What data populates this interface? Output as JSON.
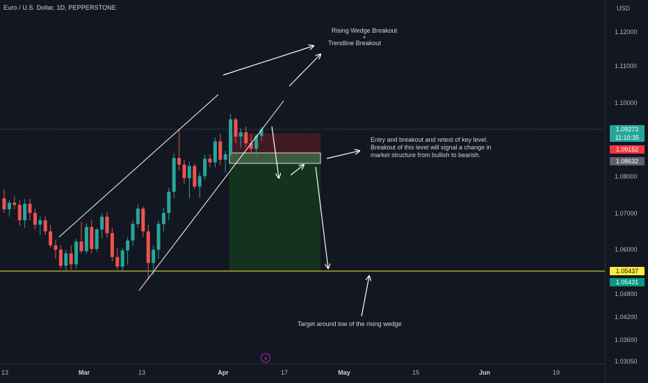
{
  "header": {
    "symbol_title": "Euro / U.S. Dollar, 1D, PEPPERSTONE"
  },
  "price_axis": {
    "currency": "USD",
    "ticks": [
      "1.12000",
      "1.11000",
      "1.10000",
      "1.08000",
      "1.07000",
      "1.06000",
      "1.04800",
      "1.04200",
      "1.03600",
      "1.03050"
    ],
    "labels": {
      "current_price": "1.09273",
      "countdown": "11:10:35",
      "red_level": "1.09152",
      "grey_level": "1.08632",
      "yellow_level": "1.05437",
      "green_level": "1.05431"
    },
    "colors": {
      "current_price": "#26a69a",
      "red_level": "#f23645",
      "grey_level": "#5d606b",
      "yellow_level": "#ffeb3b",
      "green_level": "#089981"
    }
  },
  "time_axis": {
    "ticks": [
      {
        "label": "13",
        "bold": false
      },
      {
        "label": "Mar",
        "bold": true
      },
      {
        "label": "13",
        "bold": false
      },
      {
        "label": "Apr",
        "bold": true
      },
      {
        "label": "17",
        "bold": false
      },
      {
        "label": "May",
        "bold": true
      },
      {
        "label": "15",
        "bold": false
      },
      {
        "label": "Jun",
        "bold": true
      },
      {
        "label": "19",
        "bold": false
      }
    ]
  },
  "annotations": {
    "wedge_line1": "Rising Wedge Breakout",
    "wedge_plus": "+",
    "wedge_line2": "Trendline Breakout",
    "entry_line1": "Entry and breakout and retest of key level.",
    "entry_line2": "Breakout of this level will signal a change in",
    "entry_line3": "market structure from bullish to bearish.",
    "target": "Target around low of the rising wedge"
  },
  "chart_data": {
    "type": "candlestick",
    "bull_color": "#26a69a",
    "bear_color": "#ef5350",
    "ylim": [
      1.0305,
      1.125
    ],
    "candles": [
      {
        "o": 1.074,
        "h": 1.0765,
        "l": 1.07,
        "c": 1.071
      },
      {
        "o": 1.071,
        "h": 1.0735,
        "l": 1.069,
        "c": 1.0728
      },
      {
        "o": 1.0728,
        "h": 1.0745,
        "l": 1.071,
        "c": 1.0722
      },
      {
        "o": 1.0722,
        "h": 1.0735,
        "l": 1.0665,
        "c": 1.068
      },
      {
        "o": 1.068,
        "h": 1.0738,
        "l": 1.066,
        "c": 1.0725
      },
      {
        "o": 1.0725,
        "h": 1.0738,
        "l": 1.068,
        "c": 1.07
      },
      {
        "o": 1.07,
        "h": 1.0712,
        "l": 1.0655,
        "c": 1.0668
      },
      {
        "o": 1.0668,
        "h": 1.069,
        "l": 1.064,
        "c": 1.068
      },
      {
        "o": 1.068,
        "h": 1.0692,
        "l": 1.064,
        "c": 1.065
      },
      {
        "o": 1.065,
        "h": 1.0668,
        "l": 1.0605,
        "c": 1.0612
      },
      {
        "o": 1.0612,
        "h": 1.0628,
        "l": 1.0575,
        "c": 1.06
      },
      {
        "o": 1.06,
        "h": 1.0612,
        "l": 1.0548,
        "c": 1.0556
      },
      {
        "o": 1.0556,
        "h": 1.06,
        "l": 1.054,
        "c": 1.059
      },
      {
        "o": 1.059,
        "h": 1.0612,
        "l": 1.0545,
        "c": 1.056
      },
      {
        "o": 1.056,
        "h": 1.063,
        "l": 1.0548,
        "c": 1.0622
      },
      {
        "o": 1.0622,
        "h": 1.0676,
        "l": 1.059,
        "c": 1.0596
      },
      {
        "o": 1.0596,
        "h": 1.0672,
        "l": 1.059,
        "c": 1.0662
      },
      {
        "o": 1.0662,
        "h": 1.0682,
        "l": 1.059,
        "c": 1.0602
      },
      {
        "o": 1.0602,
        "h": 1.066,
        "l": 1.0595,
        "c": 1.0655
      },
      {
        "o": 1.0655,
        "h": 1.07,
        "l": 1.063,
        "c": 1.069
      },
      {
        "o": 1.069,
        "h": 1.0702,
        "l": 1.0632,
        "c": 1.0645
      },
      {
        "o": 1.0645,
        "h": 1.066,
        "l": 1.0568,
        "c": 1.058
      },
      {
        "o": 1.058,
        "h": 1.0605,
        "l": 1.0545,
        "c": 1.0554
      },
      {
        "o": 1.0554,
        "h": 1.0605,
        "l": 1.054,
        "c": 1.0598
      },
      {
        "o": 1.0598,
        "h": 1.0635,
        "l": 1.056,
        "c": 1.0625
      },
      {
        "o": 1.0625,
        "h": 1.068,
        "l": 1.061,
        "c": 1.067
      },
      {
        "o": 1.067,
        "h": 1.0725,
        "l": 1.066,
        "c": 1.0712
      },
      {
        "o": 1.0712,
        "h": 1.0718,
        "l": 1.0635,
        "c": 1.065
      },
      {
        "o": 1.065,
        "h": 1.0668,
        "l": 1.0518,
        "c": 1.0564
      },
      {
        "o": 1.0564,
        "h": 1.0612,
        "l": 1.053,
        "c": 1.06
      },
      {
        "o": 1.06,
        "h": 1.068,
        "l": 1.0575,
        "c": 1.067
      },
      {
        "o": 1.067,
        "h": 1.0715,
        "l": 1.065,
        "c": 1.07
      },
      {
        "o": 1.07,
        "h": 1.0768,
        "l": 1.068,
        "c": 1.0758
      },
      {
        "o": 1.0758,
        "h": 1.0862,
        "l": 1.074,
        "c": 1.085
      },
      {
        "o": 1.085,
        "h": 1.093,
        "l": 1.0815,
        "c": 1.0832
      },
      {
        "o": 1.0832,
        "h": 1.0845,
        "l": 1.078,
        "c": 1.0795
      },
      {
        "o": 1.0795,
        "h": 1.084,
        "l": 1.074,
        "c": 1.0828
      },
      {
        "o": 1.0828,
        "h": 1.0835,
        "l": 1.0765,
        "c": 1.0772
      },
      {
        "o": 1.0772,
        "h": 1.081,
        "l": 1.0742,
        "c": 1.08
      },
      {
        "o": 1.08,
        "h": 1.0858,
        "l": 1.079,
        "c": 1.0848
      },
      {
        "o": 1.0848,
        "h": 1.086,
        "l": 1.0825,
        "c": 1.0838
      },
      {
        "o": 1.0838,
        "h": 1.0905,
        "l": 1.0825,
        "c": 1.0895
      },
      {
        "o": 1.0895,
        "h": 1.0915,
        "l": 1.083,
        "c": 1.0845
      },
      {
        "o": 1.0845,
        "h": 1.087,
        "l": 1.081,
        "c": 1.086
      },
      {
        "o": 1.086,
        "h": 1.097,
        "l": 1.0855,
        "c": 1.0955
      },
      {
        "o": 1.0955,
        "h": 1.096,
        "l": 1.089,
        "c": 1.0908
      },
      {
        "o": 1.0908,
        "h": 1.093,
        "l": 1.0878,
        "c": 1.092
      },
      {
        "o": 1.092,
        "h": 1.0935,
        "l": 1.0878,
        "c": 1.089
      },
      {
        "o": 1.089,
        "h": 1.0915,
        "l": 1.0862,
        "c": 1.0875
      },
      {
        "o": 1.0875,
        "h": 1.0915,
        "l": 1.0855,
        "c": 1.091
      },
      {
        "o": 1.091,
        "h": 1.0935,
        "l": 1.0895,
        "c": 1.0927
      }
    ]
  }
}
